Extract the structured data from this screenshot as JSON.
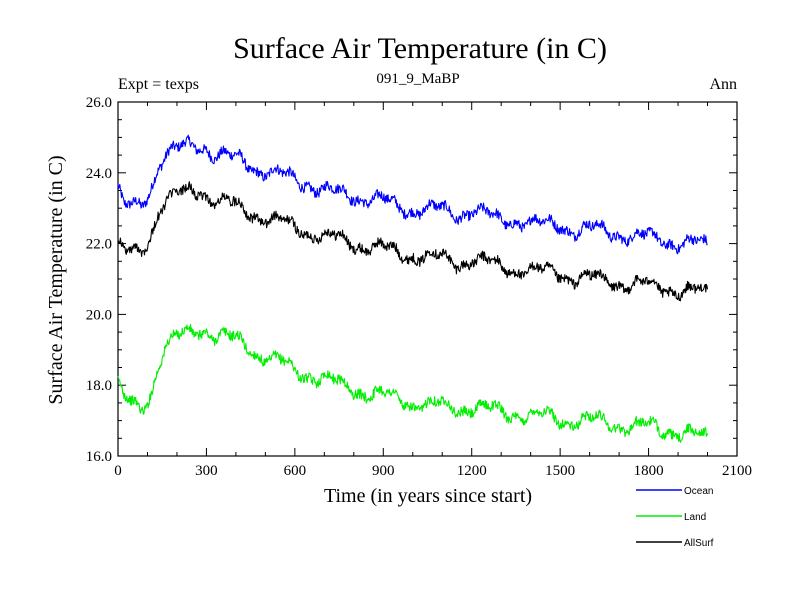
{
  "chart_data": {
    "type": "line",
    "title": "Surface Air Temperature (in C)",
    "subtitle_left": "Expt = texps",
    "subtitle_center": "091_9_MaBP",
    "subtitle_right": "Ann",
    "xlabel": "Time (in years since start)",
    "ylabel": "Surface Air Temperature (in C)",
    "xlim": [
      0,
      2100
    ],
    "ylim": [
      16.0,
      26.0
    ],
    "x_ticks": [
      0,
      300,
      600,
      900,
      1200,
      1500,
      1800,
      2100
    ],
    "x_tick_labels": [
      "0",
      "300",
      "600",
      "900",
      "1200",
      "1500",
      "1800",
      "2100"
    ],
    "y_ticks": [
      16,
      18,
      20,
      22,
      24,
      26
    ],
    "y_tick_labels": [
      "16.0",
      "18.0",
      "20.0",
      "22.0",
      "24.0",
      "26.0"
    ],
    "grid": false,
    "legend_position": "bottom-right",
    "series": [
      {
        "name": "Ocean",
        "color": "#0000ff",
        "x": [
          0,
          20,
          50,
          80,
          110,
          140,
          160,
          200,
          250,
          280,
          300,
          330,
          380,
          420,
          480,
          520,
          560,
          600,
          650,
          700,
          750,
          800,
          850,
          900,
          950,
          1000,
          1050,
          1100,
          1150,
          1200,
          1250,
          1300,
          1350,
          1400,
          1450,
          1500,
          1550,
          1600,
          1650,
          1700,
          1750,
          1800,
          1850,
          1900,
          1950,
          2000
        ],
        "values": [
          23.5,
          23.0,
          23.0,
          23.1,
          23.6,
          24.3,
          24.5,
          24.6,
          24.8,
          24.8,
          24.75,
          24.5,
          24.4,
          24.35,
          24.1,
          24.0,
          23.9,
          23.8,
          23.7,
          23.5,
          23.4,
          23.35,
          23.3,
          23.2,
          23.0,
          23.0,
          23.0,
          22.9,
          22.8,
          23.0,
          22.8,
          22.6,
          22.7,
          22.6,
          22.5,
          22.55,
          22.4,
          22.4,
          22.35,
          22.3,
          22.2,
          22.15,
          22.1,
          22.05,
          22.0,
          21.9
        ]
      },
      {
        "name": "Land",
        "color": "#00ee00",
        "x": [
          0,
          20,
          50,
          80,
          110,
          140,
          160,
          200,
          250,
          280,
          300,
          330,
          380,
          420,
          480,
          520,
          560,
          600,
          650,
          700,
          750,
          800,
          850,
          900,
          950,
          1000,
          1050,
          1100,
          1150,
          1200,
          1250,
          1300,
          1350,
          1400,
          1450,
          1500,
          1550,
          1600,
          1650,
          1700,
          1750,
          1800,
          1850,
          1900,
          1950,
          2000
        ],
        "values": [
          18.0,
          17.6,
          17.4,
          17.3,
          17.8,
          18.7,
          19.1,
          19.3,
          19.5,
          19.6,
          19.6,
          19.4,
          19.3,
          19.2,
          18.9,
          18.7,
          18.6,
          18.4,
          18.3,
          18.2,
          18.0,
          17.9,
          17.8,
          17.7,
          17.6,
          17.5,
          17.45,
          17.4,
          17.35,
          17.4,
          17.3,
          17.25,
          17.2,
          17.15,
          17.1,
          17.05,
          17.0,
          17.0,
          16.95,
          16.9,
          16.85,
          16.8,
          16.75,
          16.7,
          16.6,
          16.45
        ]
      },
      {
        "name": "AllSurf",
        "color": "#000000",
        "x": [
          0,
          20,
          50,
          80,
          110,
          140,
          160,
          200,
          250,
          280,
          300,
          330,
          380,
          420,
          480,
          520,
          560,
          600,
          650,
          700,
          750,
          800,
          850,
          900,
          950,
          1000,
          1050,
          1100,
          1150,
          1200,
          1250,
          1300,
          1350,
          1400,
          1450,
          1500,
          1550,
          1600,
          1650,
          1700,
          1750,
          1800,
          1850,
          1900,
          1950,
          2000
        ],
        "values": [
          22.0,
          21.7,
          21.7,
          21.8,
          22.3,
          23.0,
          23.2,
          23.3,
          23.5,
          23.5,
          23.45,
          23.2,
          23.1,
          23.0,
          22.8,
          22.65,
          22.55,
          22.45,
          22.35,
          22.2,
          22.1,
          22.0,
          21.95,
          21.85,
          21.7,
          21.7,
          21.65,
          21.55,
          21.45,
          21.6,
          21.45,
          21.3,
          21.3,
          21.25,
          21.15,
          21.15,
          21.05,
          21.0,
          20.95,
          20.9,
          20.85,
          20.8,
          20.75,
          20.7,
          20.65,
          20.55
        ]
      }
    ]
  }
}
